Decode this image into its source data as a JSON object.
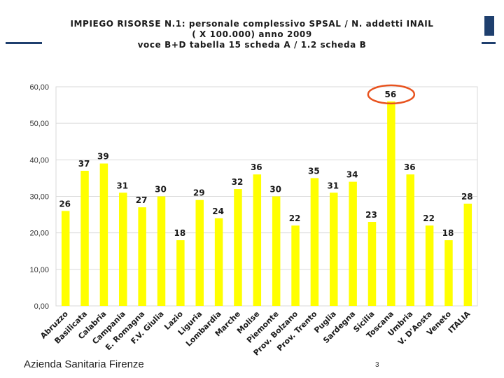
{
  "slide": {
    "title_lines": [
      "IMPIEGO RISORSE N.1: personale complessivo SPSAL / N. addetti INAIL",
      "( X 100.000) anno 2009",
      "voce B+D tabella 15 scheda A / 1.2 scheda B"
    ],
    "footer_org": "Azienda Sanitaria Firenze",
    "page_number": "3"
  },
  "colors": {
    "bar": "#ffff00",
    "highlight_circle": "#e8531f",
    "accent": "#1f3f6e"
  },
  "chart_data": {
    "type": "bar",
    "categories": [
      "Abruzzo",
      "Basilicata",
      "Calabria",
      "Campania",
      "E. Romagna",
      "F.V. Giulia",
      "Lazio",
      "Liguria",
      "Lombardia",
      "Marche",
      "Molise",
      "Piemonte",
      "Prov. Bolzano",
      "Prov. Trento",
      "Puglia",
      "Sardegna",
      "Sicilia",
      "Toscana",
      "Umbria",
      "V. D'Aosta",
      "Veneto",
      "ITALIA"
    ],
    "values": [
      26,
      37,
      39,
      31,
      27,
      30,
      18,
      29,
      24,
      32,
      36,
      30,
      22,
      35,
      31,
      34,
      23,
      56,
      36,
      22,
      18,
      28
    ],
    "data_labels": [
      "26",
      "37",
      "39",
      "31",
      "27",
      "30",
      "18",
      "29",
      "24",
      "32",
      "36",
      "30",
      "22",
      "35",
      "31",
      "34",
      "23",
      "56",
      "36",
      "22",
      "18",
      "28"
    ],
    "y_ticks": [
      "0,00",
      "10,00",
      "20,00",
      "30,00",
      "40,00",
      "50,00",
      "60,00"
    ],
    "ylim": [
      0,
      60
    ],
    "grid": true,
    "highlighted_category": "Toscana"
  }
}
